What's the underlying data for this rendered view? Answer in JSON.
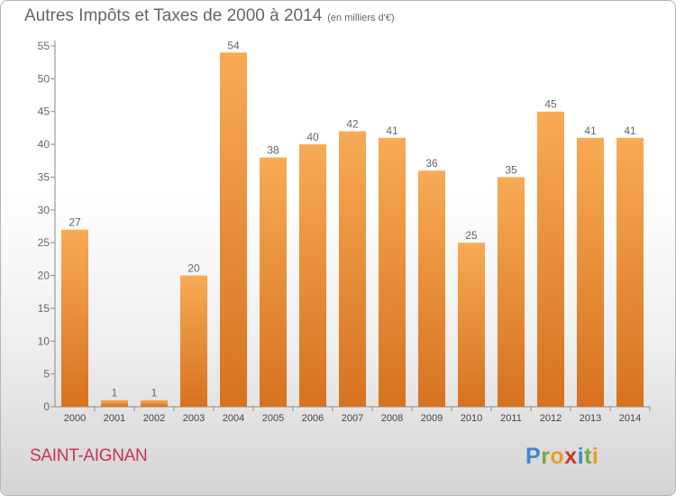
{
  "title": "Autres Impôts et Taxes de 2000 à 2014",
  "unit": "(en milliers d'€)",
  "commune": "SAINT-AIGNAN",
  "logo": {
    "letters": [
      "P",
      "r",
      "o",
      "x",
      "i",
      "t",
      "i"
    ],
    "colors": [
      "#3b87c8",
      "#7aa83a",
      "#e79b27",
      "#c63a2e",
      "#3b87c8",
      "#7aa83a",
      "#e79b27"
    ]
  },
  "colors": {
    "bar_light": "#f8aa55",
    "bar_dark": "#d67220",
    "text": "#666666",
    "commune": "#c8325a"
  },
  "chart_data": {
    "type": "bar",
    "categories": [
      "2000",
      "2001",
      "2002",
      "2003",
      "2004",
      "2005",
      "2006",
      "2007",
      "2008",
      "2009",
      "2010",
      "2011",
      "2012",
      "2013",
      "2014"
    ],
    "values": [
      27,
      1,
      1,
      20,
      54,
      38,
      40,
      42,
      41,
      36,
      25,
      35,
      45,
      41,
      41
    ],
    "ylim": [
      0,
      55
    ],
    "yticks": [
      0,
      5,
      10,
      15,
      20,
      25,
      30,
      35,
      40,
      45,
      50,
      55
    ],
    "grid": false,
    "data_labels": true
  }
}
